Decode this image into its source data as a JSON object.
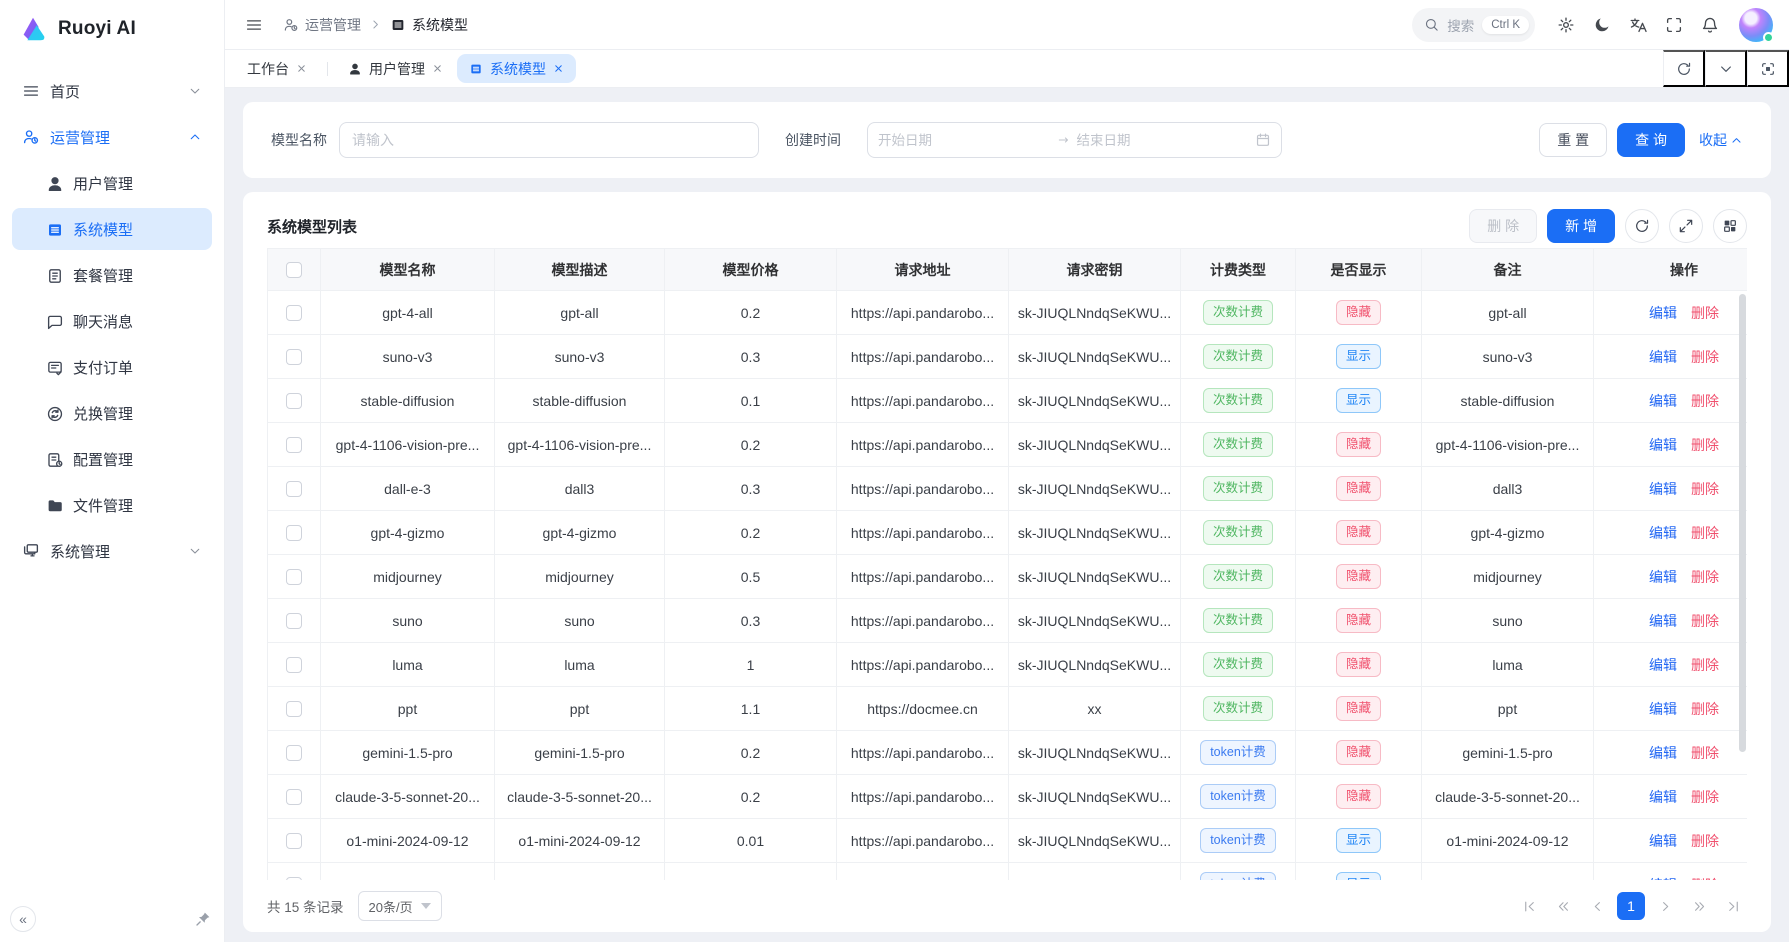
{
  "app": {
    "name": "Ruoyi AI"
  },
  "colors": {
    "primary": "#1b6ef5",
    "danger": "#f0506e",
    "success": "#4fb661",
    "info_badge_blue": "#2286f5"
  },
  "sidebar": {
    "sections": [
      {
        "id": "home",
        "label": "首页",
        "icon": "menu",
        "chevron": "down"
      },
      {
        "id": "operations",
        "label": "运营管理",
        "icon": "operations",
        "chevron": "up",
        "active": true,
        "children": [
          {
            "id": "user-management",
            "label": "用户管理",
            "icon": "user"
          },
          {
            "id": "system-model",
            "label": "系统模型",
            "icon": "list",
            "active": true
          },
          {
            "id": "package-management",
            "label": "套餐管理",
            "icon": "package"
          },
          {
            "id": "chat-messages",
            "label": "聊天消息",
            "icon": "chat"
          },
          {
            "id": "payment-orders",
            "label": "支付订单",
            "icon": "pay"
          },
          {
            "id": "exchange-management",
            "label": "兑换管理",
            "icon": "exchange"
          },
          {
            "id": "config-management",
            "label": "配置管理",
            "icon": "config"
          },
          {
            "id": "file-management",
            "label": "文件管理",
            "icon": "folder"
          }
        ]
      },
      {
        "id": "system-management",
        "label": "系统管理",
        "icon": "system",
        "chevron": "down"
      }
    ],
    "collapse_glyph": "«"
  },
  "header": {
    "breadcrumb": [
      {
        "label": "运营管理",
        "icon": "operations"
      },
      {
        "label": "系统模型",
        "icon": "list"
      }
    ],
    "search": {
      "placeholder": "搜索",
      "shortcut": "Ctrl K"
    }
  },
  "tabs": [
    {
      "id": "workbench",
      "label": "工作台"
    },
    {
      "id": "user-management",
      "label": "用户管理",
      "icon": "user"
    },
    {
      "id": "system-model",
      "label": "系统模型",
      "icon": "list",
      "active": true
    }
  ],
  "filter": {
    "model_name_label": "模型名称",
    "model_name_placeholder": "请输入",
    "create_time_label": "创建时间",
    "start_placeholder": "开始日期",
    "end_placeholder": "结束日期",
    "reset_label": "重 置",
    "search_label": "查 询",
    "collapse_label": "收起"
  },
  "table": {
    "title": "系统模型列表",
    "toolbar": {
      "delete_label": "删 除",
      "add_label": "新 增"
    },
    "columns": [
      "模型名称",
      "模型描述",
      "模型价格",
      "请求地址",
      "请求密钥",
      "计费类型",
      "是否显示",
      "备注",
      "操作"
    ],
    "badges": {
      "count": "次数计费",
      "token": "token计费",
      "hidden": "隐藏",
      "shown": "显示"
    },
    "actions": {
      "edit": "编辑",
      "delete": "删除"
    },
    "rows": [
      {
        "name": "gpt-4-all",
        "desc": "gpt-all",
        "price": "0.2",
        "url": "https://api.pandarobo...",
        "key": "sk-JIUQLNndqSeKWU...",
        "billing": "count",
        "visible": false,
        "remark": "gpt-all"
      },
      {
        "name": "suno-v3",
        "desc": "suno-v3",
        "price": "0.3",
        "url": "https://api.pandarobo...",
        "key": "sk-JIUQLNndqSeKWU...",
        "billing": "count",
        "visible": true,
        "remark": "suno-v3"
      },
      {
        "name": "stable-diffusion",
        "desc": "stable-diffusion",
        "price": "0.1",
        "url": "https://api.pandarobo...",
        "key": "sk-JIUQLNndqSeKWU...",
        "billing": "count",
        "visible": true,
        "remark": "stable-diffusion"
      },
      {
        "name": "gpt-4-1106-vision-pre...",
        "desc": "gpt-4-1106-vision-pre...",
        "price": "0.2",
        "url": "https://api.pandarobo...",
        "key": "sk-JIUQLNndqSeKWU...",
        "billing": "count",
        "visible": false,
        "remark": "gpt-4-1106-vision-pre..."
      },
      {
        "name": "dall-e-3",
        "desc": "dall3",
        "price": "0.3",
        "url": "https://api.pandarobo...",
        "key": "sk-JIUQLNndqSeKWU...",
        "billing": "count",
        "visible": false,
        "remark": "dall3"
      },
      {
        "name": "gpt-4-gizmo",
        "desc": "gpt-4-gizmo",
        "price": "0.2",
        "url": "https://api.pandarobo...",
        "key": "sk-JIUQLNndqSeKWU...",
        "billing": "count",
        "visible": false,
        "remark": "gpt-4-gizmo"
      },
      {
        "name": "midjourney",
        "desc": "midjourney",
        "price": "0.5",
        "url": "https://api.pandarobo...",
        "key": "sk-JIUQLNndqSeKWU...",
        "billing": "count",
        "visible": false,
        "remark": "midjourney"
      },
      {
        "name": "suno",
        "desc": "suno",
        "price": "0.3",
        "url": "https://api.pandarobo...",
        "key": "sk-JIUQLNndqSeKWU...",
        "billing": "count",
        "visible": false,
        "remark": "suno"
      },
      {
        "name": "luma",
        "desc": "luma",
        "price": "1",
        "url": "https://api.pandarobo...",
        "key": "sk-JIUQLNndqSeKWU...",
        "billing": "count",
        "visible": false,
        "remark": "luma"
      },
      {
        "name": "ppt",
        "desc": "ppt",
        "price": "1.1",
        "url": "https://docmee.cn",
        "key": "xx",
        "billing": "count",
        "visible": false,
        "remark": "ppt"
      },
      {
        "name": "gemini-1.5-pro",
        "desc": "gemini-1.5-pro",
        "price": "0.2",
        "url": "https://api.pandarobo...",
        "key": "sk-JIUQLNndqSeKWU...",
        "billing": "token",
        "visible": false,
        "remark": "gemini-1.5-pro"
      },
      {
        "name": "claude-3-5-sonnet-20...",
        "desc": "claude-3-5-sonnet-20...",
        "price": "0.2",
        "url": "https://api.pandarobo...",
        "key": "sk-JIUQLNndqSeKWU...",
        "billing": "token",
        "visible": false,
        "remark": "claude-3-5-sonnet-20..."
      },
      {
        "name": "o1-mini-2024-09-12",
        "desc": "o1-mini-2024-09-12",
        "price": "0.01",
        "url": "https://api.pandarobo...",
        "key": "sk-JIUQLNndqSeKWU...",
        "billing": "token",
        "visible": true,
        "remark": "o1-mini-2024-09-12"
      },
      {
        "name": "",
        "desc": "",
        "price": "",
        "url": "",
        "key": "",
        "billing": "token",
        "visible": true,
        "remark": "",
        "partial": true
      }
    ]
  },
  "pagination": {
    "total_label": "共 15 条记录",
    "page_size_label": "20条/页",
    "current_page": "1"
  }
}
